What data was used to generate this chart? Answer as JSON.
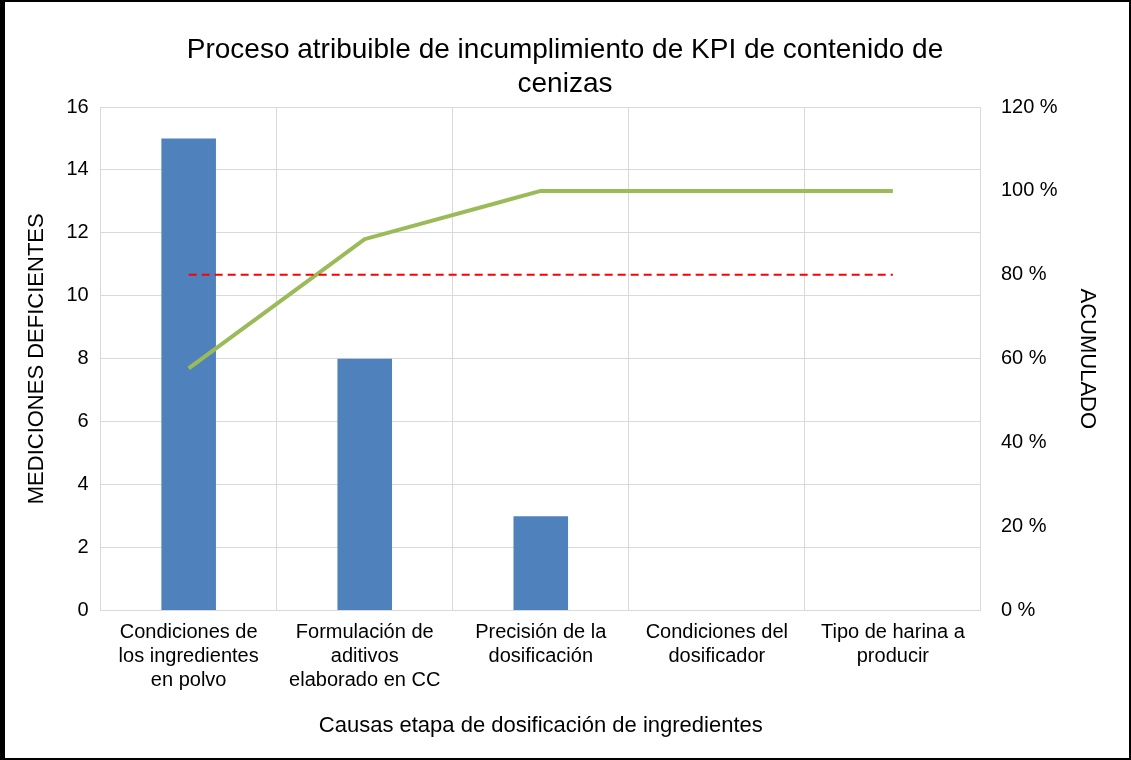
{
  "chart_data": {
    "type": "bar",
    "title": "Proceso atribuible de incumplimiento de KPI de contenido de cenizas",
    "xlabel": "Causas etapa de dosificación de ingredientes",
    "ylabel": "MEDICIONES DEFICIENTES",
    "y2label": "ACUMULADO",
    "categories": [
      "Condiciones de los ingredientes en polvo",
      "Formulación de aditivos elaborado en CC",
      "Precisión de la dosificación",
      "Condiciones del dosificador",
      "Tipo de harina a producir"
    ],
    "series": [
      {
        "color": "#4f81bd",
        "values": [
          15,
          8,
          3,
          0,
          0
        ]
      },
      {
        "type": "line",
        "axis": "y2",
        "color": "#9bbb59",
        "values": [
          57.7,
          88.5,
          100,
          100,
          100
        ]
      }
    ],
    "ylim": [
      0,
      16
    ],
    "yticks": [
      0,
      2,
      4,
      6,
      8,
      10,
      12,
      14,
      16
    ],
    "y2lim": [
      0,
      120
    ],
    "y2ticks": [
      {
        "value": 0,
        "label": "0 %"
      },
      {
        "value": 20,
        "label": "20 %"
      },
      {
        "value": 40,
        "label": "40 %"
      },
      {
        "value": 60,
        "label": "60 %"
      },
      {
        "value": 80,
        "label": "80 %"
      },
      {
        "value": 100,
        "label": "100 %"
      },
      {
        "value": 120,
        "label": "120 %"
      }
    ],
    "ref_lines": [
      {
        "axis": "y2",
        "value": 80,
        "color": "#ff0000",
        "line_style": "dashed"
      }
    ],
    "grid": true,
    "legend": false,
    "marker": "none"
  }
}
